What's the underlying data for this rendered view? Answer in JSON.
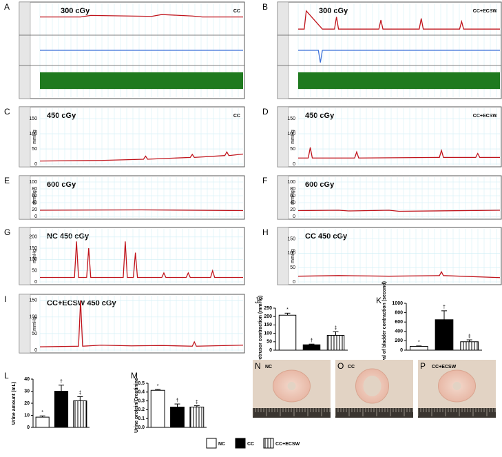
{
  "chart_data": [
    {
      "type": "trace",
      "panel": "A",
      "title": "300 cGy",
      "annotation": "CC",
      "series": [
        {
          "color": "#c0141c",
          "ylim": [
            0,
            100
          ],
          "x": [
            0,
            20,
            25,
            55,
            60,
            75,
            80,
            100
          ],
          "values": [
            60,
            60,
            65,
            62,
            68,
            63,
            60,
            60
          ]
        },
        {
          "color": "#3b6fd8",
          "ylim": [
            0,
            100
          ],
          "x": [
            0,
            100
          ],
          "values": [
            50,
            50
          ]
        },
        {
          "color": "#1f7a1f",
          "ylim": [
            0,
            100
          ],
          "x": [
            0,
            100
          ],
          "values": [
            50,
            50
          ]
        }
      ]
    },
    {
      "type": "trace",
      "panel": "B",
      "title": "300 cGy",
      "annotation": "CC+ECSW",
      "series": [
        {
          "color": "#c0141c",
          "ylim": [
            0,
            100
          ],
          "x": [
            0,
            3,
            4,
            12,
            18,
            19,
            20,
            40,
            41,
            42,
            60,
            61,
            62,
            80,
            81,
            82,
            100
          ],
          "values": [
            20,
            20,
            80,
            20,
            20,
            60,
            20,
            20,
            50,
            20,
            20,
            55,
            20,
            20,
            45,
            20,
            20
          ]
        },
        {
          "color": "#3b6fd8",
          "ylim": [
            0,
            100
          ],
          "x": [
            0,
            10,
            11,
            12,
            100
          ],
          "values": [
            50,
            50,
            10,
            50,
            50
          ]
        },
        {
          "color": "#1f7a1f",
          "ylim": [
            0,
            100
          ],
          "x": [
            0,
            100
          ],
          "values": [
            50,
            50
          ]
        }
      ]
    },
    {
      "type": "trace",
      "panel": "C",
      "title": "450 cGy",
      "annotation": "CC",
      "ylabel": "mmHg",
      "ylim": [
        0,
        180
      ],
      "yticks": [
        0,
        50,
        100,
        150
      ],
      "series": [
        {
          "color": "#c0141c",
          "x": [
            0,
            30,
            51,
            52,
            53,
            74,
            75,
            76,
            91,
            92,
            93,
            100
          ],
          "values": [
            10,
            12,
            16,
            26,
            16,
            22,
            32,
            22,
            28,
            40,
            28,
            33
          ]
        }
      ]
    },
    {
      "type": "trace",
      "panel": "D",
      "title": "450 cGy",
      "annotation": "CC+ECSW",
      "ylabel": "mmHg",
      "ylim": [
        0,
        180
      ],
      "yticks": [
        0,
        50,
        100,
        150
      ],
      "series": [
        {
          "color": "#c0141c",
          "x": [
            0,
            5,
            6,
            7,
            28,
            29,
            30,
            70,
            71,
            72,
            88,
            89,
            90,
            100
          ],
          "values": [
            20,
            20,
            55,
            20,
            20,
            40,
            20,
            22,
            45,
            22,
            22,
            35,
            22,
            22
          ]
        }
      ]
    },
    {
      "type": "trace",
      "panel": "E",
      "title": "600 cGy",
      "ylabel": "mmHg",
      "ylim": [
        0,
        110
      ],
      "yticks": [
        0,
        20,
        40,
        60,
        80,
        100
      ],
      "series": [
        {
          "color": "#c0141c",
          "x": [
            0,
            50,
            100
          ],
          "values": [
            18,
            19,
            17
          ]
        }
      ]
    },
    {
      "type": "trace",
      "panel": "F",
      "title": "600 cGy",
      "ylabel": "mmHg",
      "ylim": [
        0,
        110
      ],
      "yticks": [
        0,
        20,
        40,
        60,
        80,
        100
      ],
      "series": [
        {
          "color": "#c0141c",
          "x": [
            0,
            20,
            25,
            45,
            50,
            100
          ],
          "values": [
            17,
            18,
            16,
            18,
            15,
            18
          ]
        }
      ]
    },
    {
      "type": "trace",
      "panel": "G",
      "title": "NC 450 cGy",
      "ylabel": "mmHg",
      "ylim": [
        0,
        230
      ],
      "yticks": [
        0,
        50,
        100,
        150,
        200
      ],
      "series": [
        {
          "color": "#c0141c",
          "x": [
            0,
            17,
            18,
            19,
            23,
            24,
            25,
            41,
            42,
            43,
            46,
            47,
            48,
            60,
            61,
            62,
            72,
            73,
            74,
            84,
            85,
            86,
            100
          ],
          "values": [
            20,
            20,
            180,
            20,
            20,
            150,
            20,
            20,
            180,
            20,
            20,
            130,
            20,
            20,
            40,
            20,
            20,
            40,
            20,
            20,
            50,
            20,
            20
          ]
        }
      ]
    },
    {
      "type": "trace",
      "panel": "H",
      "title": "CC 450 cGy",
      "ylabel": "mmHg",
      "ylim": [
        0,
        180
      ],
      "yticks": [
        0,
        50,
        100,
        150
      ],
      "series": [
        {
          "color": "#c0141c",
          "x": [
            0,
            20,
            45,
            70,
            71,
            72,
            100
          ],
          "values": [
            20,
            22,
            20,
            22,
            35,
            22,
            15
          ]
        }
      ]
    },
    {
      "type": "trace",
      "panel": "I",
      "title": "CC+ECSW 450 cGy",
      "ylabel": "mmHg",
      "ylim": [
        0,
        160
      ],
      "yticks": [
        0,
        50,
        100,
        150
      ],
      "series": [
        {
          "color": "#c0141c",
          "x": [
            0,
            19,
            20,
            21,
            30,
            45,
            60,
            75,
            76,
            77,
            100
          ],
          "values": [
            10,
            12,
            150,
            12,
            15,
            13,
            14,
            12,
            25,
            12,
            15
          ]
        }
      ]
    },
    {
      "type": "bar",
      "panel": "J",
      "ylabel": "Detrusor contraction (mmHg)",
      "ylim": [
        0,
        250
      ],
      "yticks": [
        0,
        50,
        100,
        150,
        200,
        250
      ],
      "values": [
        208,
        32,
        88
      ],
      "errors": [
        12,
        4,
        22
      ],
      "annotations": [
        "*",
        "†",
        "‡"
      ]
    },
    {
      "type": "bar",
      "panel": "K",
      "ylabel": "Interval of bladder contraction (second)",
      "ylim": [
        0,
        1000
      ],
      "yticks": [
        0,
        200,
        400,
        600,
        800,
        1000
      ],
      "values": [
        80,
        650,
        180
      ],
      "errors": [
        10,
        190,
        40
      ],
      "annotations": [
        "*",
        "†",
        "‡"
      ]
    },
    {
      "type": "bar",
      "panel": "L",
      "ylabel": "Urine amount (mL)",
      "ylim": [
        0,
        40
      ],
      "yticks": [
        0,
        10,
        20,
        30,
        40
      ],
      "values": [
        8.5,
        30,
        22
      ],
      "errors": [
        1,
        5,
        3.5
      ],
      "annotations": [
        "*",
        "†",
        "‡"
      ]
    },
    {
      "type": "bar",
      "panel": "M",
      "ylabel": "Urine protein/Creatinine",
      "ylim": [
        0,
        0.5
      ],
      "yticks": [
        {
          "value": 0,
          "label": "0.0"
        },
        0.1,
        0.2,
        0.3,
        0.4,
        0.5
      ],
      "values": [
        0.42,
        0.23,
        0.23
      ],
      "errors": [
        0.01,
        0.035,
        0.015
      ],
      "annotations": [
        "*",
        "†",
        "‡"
      ]
    }
  ],
  "legend": [
    {
      "name": "NC",
      "color": "#ffffff"
    },
    {
      "name": "CC",
      "color": "#000000"
    },
    {
      "name": "CC+ECSW",
      "color": "#ffffff",
      "hatch": "vertical"
    }
  ],
  "photos": [
    {
      "panel": "N",
      "label": "NC"
    },
    {
      "panel": "O",
      "label": "CC"
    },
    {
      "panel": "P",
      "label": "CC+ECSW"
    }
  ]
}
